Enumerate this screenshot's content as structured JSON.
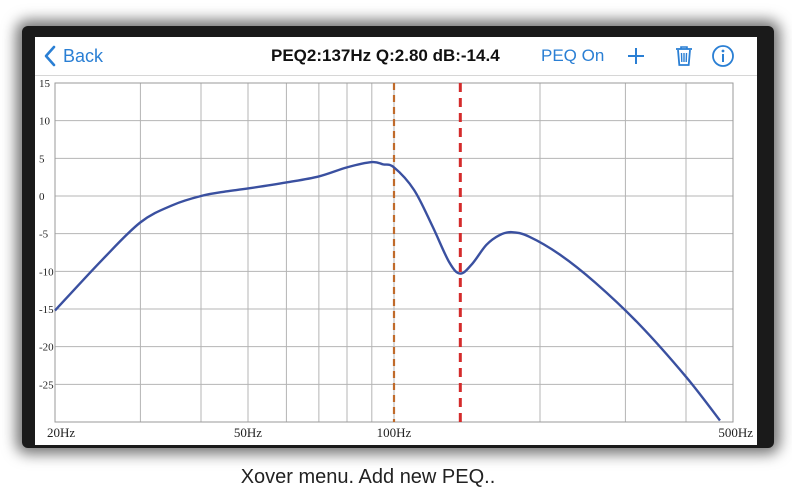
{
  "nav": {
    "back_label": "Back",
    "title": "PEQ2:137Hz Q:2.80 dB:-14.4",
    "peq_toggle_label": "PEQ On",
    "icons": {
      "add": "plus-icon",
      "delete": "trash-icon",
      "info": "info-icon"
    },
    "accent_color": "#2a7fd4"
  },
  "caption": "Xover menu. Add new PEQ..",
  "chart_data": {
    "type": "line",
    "x_scale": "log",
    "xlim": [
      20,
      500
    ],
    "ylim": [
      -30,
      15
    ],
    "y_ticks": [
      "15",
      "10",
      "5",
      "0",
      "-5",
      "-10",
      "-15",
      "-20",
      "-25"
    ],
    "y_tick_values": [
      15,
      10,
      5,
      0,
      -5,
      -10,
      -15,
      -20,
      -25
    ],
    "x_tick_labels": [
      {
        "x": 20,
        "label": "20Hz"
      },
      {
        "x": 50,
        "label": "50Hz"
      },
      {
        "x": 100,
        "label": "100Hz"
      },
      {
        "x": 500,
        "label": "500Hz"
      }
    ],
    "grid": true,
    "series": [
      {
        "color": "#3a50a0",
        "points": [
          [
            20,
            -15.2
          ],
          [
            25,
            -8.5
          ],
          [
            30,
            -3.5
          ],
          [
            35,
            -1.2
          ],
          [
            40,
            0.0
          ],
          [
            45,
            0.6
          ],
          [
            50,
            1.0
          ],
          [
            60,
            1.8
          ],
          [
            70,
            2.6
          ],
          [
            80,
            3.8
          ],
          [
            90,
            4.5
          ],
          [
            95,
            4.2
          ],
          [
            100,
            3.8
          ],
          [
            110,
            0.8
          ],
          [
            120,
            -4.0
          ],
          [
            130,
            -8.8
          ],
          [
            137,
            -10.3
          ],
          [
            145,
            -9.0
          ],
          [
            155,
            -6.5
          ],
          [
            165,
            -5.2
          ],
          [
            175,
            -4.8
          ],
          [
            190,
            -5.4
          ],
          [
            220,
            -7.8
          ],
          [
            260,
            -11.5
          ],
          [
            320,
            -17.0
          ],
          [
            400,
            -24.0
          ],
          [
            470,
            -29.8
          ]
        ]
      }
    ],
    "markers": [
      {
        "x": 100,
        "color": "#c06a2a",
        "style": "dashed"
      },
      {
        "x": 137,
        "color": "#d42b2b",
        "style": "dashed"
      }
    ]
  }
}
